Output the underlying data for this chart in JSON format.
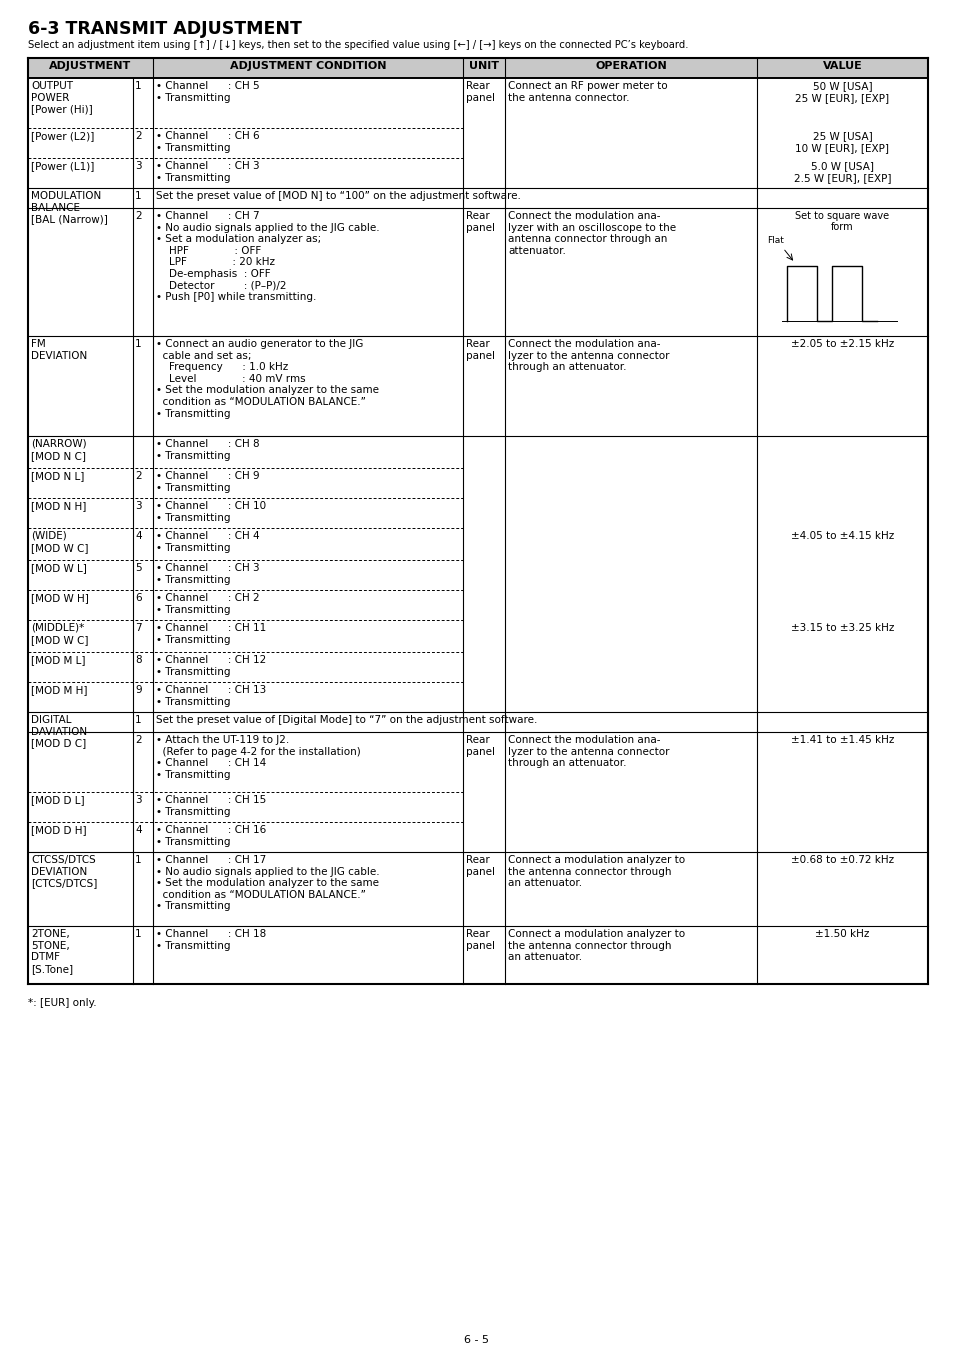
{
  "title": "6-3 TRANSMIT ADJUSTMENT",
  "subtitle": "Select an adjustment item using [↑] / [↓] keys, then set to the specified value using [←] / [→] keys on the connected PC’s keyboard.",
  "page_num": "6 - 5",
  "footer": "*: [EUR] only."
}
